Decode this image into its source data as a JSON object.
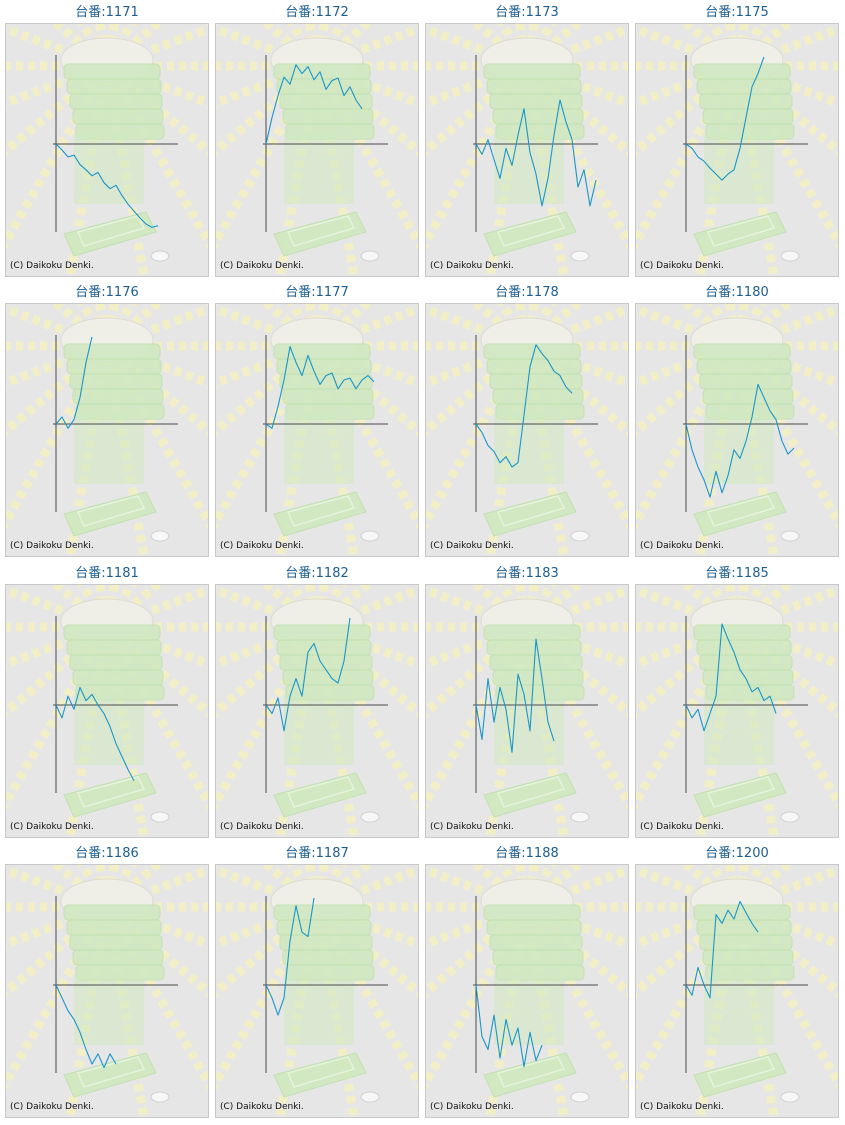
{
  "colors": {
    "line": "#1a96c8",
    "axis": "#4a4a4a",
    "title": "#1d5e91",
    "panel_bg": "#e6e6e6",
    "illustration_green": "#cfe9c0",
    "illustration_rays": "#f4f1c4"
  },
  "copyright": "(C) Daikoku Denki.",
  "chart_data": [
    {
      "title": "台番:1171",
      "type": "line",
      "values": [
        0,
        -0.07,
        -0.15,
        -0.13,
        -0.24,
        -0.3,
        -0.37,
        -0.33,
        -0.45,
        -0.52,
        -0.48,
        -0.6,
        -0.7,
        -0.78,
        -0.86,
        -0.93,
        -0.97,
        -0.95
      ]
    },
    {
      "title": "台番:1172",
      "type": "line",
      "values": [
        0,
        0.3,
        0.55,
        0.76,
        0.68,
        0.9,
        0.8,
        0.88,
        0.73,
        0.82,
        0.62,
        0.72,
        0.75,
        0.55,
        0.65,
        0.5,
        0.4
      ]
    },
    {
      "title": "台番:1173",
      "type": "line",
      "values": [
        0,
        -0.12,
        0.05,
        -0.18,
        -0.4,
        -0.05,
        -0.25,
        0.1,
        0.4,
        -0.1,
        -0.35,
        -0.72,
        -0.4,
        0.1,
        0.5,
        0.25,
        0.05,
        -0.5,
        -0.3,
        -0.72,
        -0.42
      ]
    },
    {
      "title": "台番:1175",
      "type": "line",
      "values": [
        0,
        -0.05,
        -0.15,
        -0.2,
        -0.28,
        -0.35,
        -0.42,
        -0.35,
        -0.3,
        -0.05,
        0.3,
        0.65,
        0.8,
        0.99
      ]
    },
    {
      "title": "台番:1176",
      "type": "line",
      "values": [
        0,
        0.08,
        -0.05,
        0.05,
        0.3,
        0.7,
        0.99
      ]
    },
    {
      "title": "台番:1177",
      "type": "line",
      "values": [
        0,
        -0.05,
        0.2,
        0.5,
        0.88,
        0.7,
        0.55,
        0.78,
        0.6,
        0.45,
        0.55,
        0.58,
        0.4,
        0.5,
        0.52,
        0.4,
        0.5,
        0.55,
        0.48
      ]
    },
    {
      "title": "台番:1178",
      "type": "line",
      "values": [
        0,
        -0.1,
        -0.25,
        -0.32,
        -0.45,
        -0.38,
        -0.5,
        -0.45,
        0.1,
        0.65,
        0.9,
        0.8,
        0.72,
        0.6,
        0.55,
        0.42,
        0.35
      ]
    },
    {
      "title": "台番:1180",
      "type": "line",
      "values": [
        0,
        -0.3,
        -0.5,
        -0.65,
        -0.85,
        -0.55,
        -0.8,
        -0.6,
        -0.3,
        -0.4,
        -0.2,
        0.08,
        0.45,
        0.3,
        0.15,
        0.05,
        -0.2,
        -0.35,
        -0.28
      ]
    },
    {
      "title": "台番:1181",
      "type": "line",
      "values": [
        0,
        -0.15,
        0.1,
        -0.05,
        0.2,
        0.05,
        0.12,
        0.0,
        -0.1,
        -0.25,
        -0.45,
        -0.6,
        -0.75,
        -0.88
      ]
    },
    {
      "title": "台番:1182",
      "type": "line",
      "values": [
        0,
        -0.1,
        0.08,
        -0.3,
        0.1,
        0.3,
        0.1,
        0.6,
        0.7,
        0.5,
        0.4,
        0.3,
        0.25,
        0.5,
        0.99
      ]
    },
    {
      "title": "台番:1183",
      "type": "line",
      "values": [
        0,
        -0.4,
        0.3,
        -0.2,
        0.2,
        -0.05,
        -0.55,
        0.35,
        0.12,
        -0.3,
        0.75,
        0.3,
        -0.2,
        -0.42
      ]
    },
    {
      "title": "台番:1185",
      "type": "line",
      "values": [
        0,
        -0.15,
        -0.05,
        -0.3,
        -0.1,
        0.1,
        0.92,
        0.75,
        0.6,
        0.4,
        0.3,
        0.15,
        0.2,
        0.05,
        0.1,
        -0.1
      ]
    },
    {
      "title": "台番:1186",
      "type": "line",
      "values": [
        0,
        -0.15,
        -0.3,
        -0.4,
        -0.55,
        -0.75,
        -0.92,
        -0.8,
        -0.96,
        -0.8,
        -0.92
      ]
    },
    {
      "title": "台番:1187",
      "type": "line",
      "values": [
        0,
        -0.15,
        -0.35,
        -0.15,
        0.5,
        0.9,
        0.6,
        0.55,
        0.99
      ]
    },
    {
      "title": "台番:1188",
      "type": "line",
      "values": [
        0,
        -0.6,
        -0.75,
        -0.35,
        -0.85,
        -0.4,
        -0.7,
        -0.5,
        -0.95,
        -0.55,
        -0.88,
        -0.7
      ]
    },
    {
      "title": "台番:1200",
      "type": "line",
      "values": [
        0,
        -0.12,
        0.2,
        0.0,
        -0.15,
        0.8,
        0.7,
        0.85,
        0.75,
        0.95,
        0.82,
        0.7,
        0.6
      ]
    }
  ]
}
